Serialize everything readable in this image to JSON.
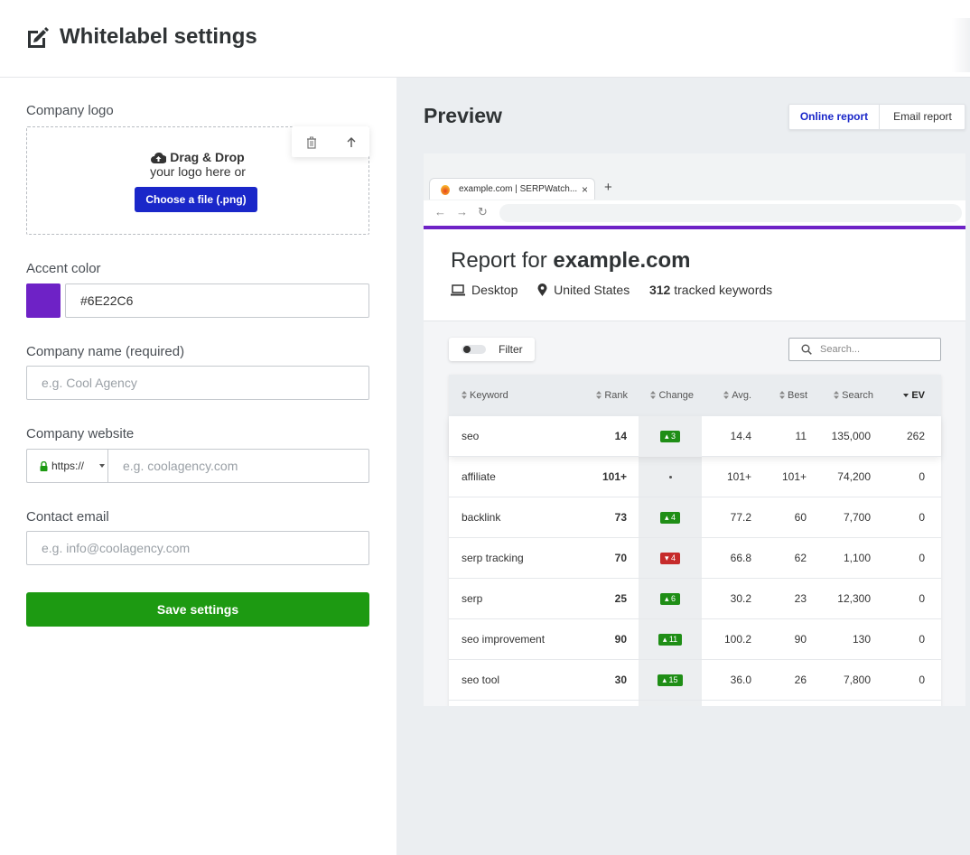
{
  "header": {
    "title": "Whitelabel settings",
    "icon": "edit-icon"
  },
  "form": {
    "logo_label": "Company logo",
    "dropzone": {
      "line1": "Drag & Drop",
      "line2": "your logo here or",
      "button": "Choose a file (.png)"
    },
    "accent_label": "Accent color",
    "accent_value": "#6E22C6",
    "name_label": "Company name (required)",
    "name_placeholder": "e.g. Cool Agency",
    "website_label": "Company website",
    "website_protocol": "https://",
    "website_placeholder": "e.g. coolagency.com",
    "email_label": "Contact email",
    "email_placeholder": "e.g. info@coolagency.com",
    "save_label": "Save settings"
  },
  "preview": {
    "title": "Preview",
    "tabs": [
      "Online report",
      "Email report"
    ],
    "active_tab": "Online report",
    "browser_tab_title": "example.com | SERPWatch...",
    "report": {
      "title_prefix": "Report for",
      "domain": "example.com",
      "device": "Desktop",
      "location": "United States",
      "keyword_count": "312",
      "keyword_suffix": "tracked keywords"
    },
    "filter_label": "Filter",
    "search_placeholder": "Search...",
    "columns": [
      "Keyword",
      "Rank",
      "Change",
      "Avg.",
      "Best",
      "Search",
      "EV"
    ],
    "rows": [
      {
        "keyword": "seo",
        "rank": "14",
        "change": "3",
        "dir": "up",
        "avg": "14.4",
        "best": "11",
        "search": "135,000",
        "ev": "262"
      },
      {
        "keyword": "affiliate",
        "rank": "101+",
        "change": "",
        "dir": "none",
        "avg": "101+",
        "best": "101+",
        "search": "74,200",
        "ev": "0"
      },
      {
        "keyword": "backlink",
        "rank": "73",
        "change": "4",
        "dir": "up",
        "avg": "77.2",
        "best": "60",
        "search": "7,700",
        "ev": "0"
      },
      {
        "keyword": "serp tracking",
        "rank": "70",
        "change": "4",
        "dir": "down",
        "avg": "66.8",
        "best": "62",
        "search": "1,100",
        "ev": "0"
      },
      {
        "keyword": "serp",
        "rank": "25",
        "change": "6",
        "dir": "up",
        "avg": "30.2",
        "best": "23",
        "search": "12,300",
        "ev": "0"
      },
      {
        "keyword": "seo improvement",
        "rank": "90",
        "change": "11",
        "dir": "up",
        "avg": "100.2",
        "best": "90",
        "search": "130",
        "ev": "0"
      },
      {
        "keyword": "seo tool",
        "rank": "30",
        "change": "15",
        "dir": "up",
        "avg": "36.0",
        "best": "26",
        "search": "7,800",
        "ev": "0"
      }
    ]
  },
  "colors": {
    "accent": "#6E22C6",
    "primary_button": "#1a27c9",
    "save_button": "#1d9a12",
    "up": "#1f8e16",
    "down": "#c62b2b"
  }
}
